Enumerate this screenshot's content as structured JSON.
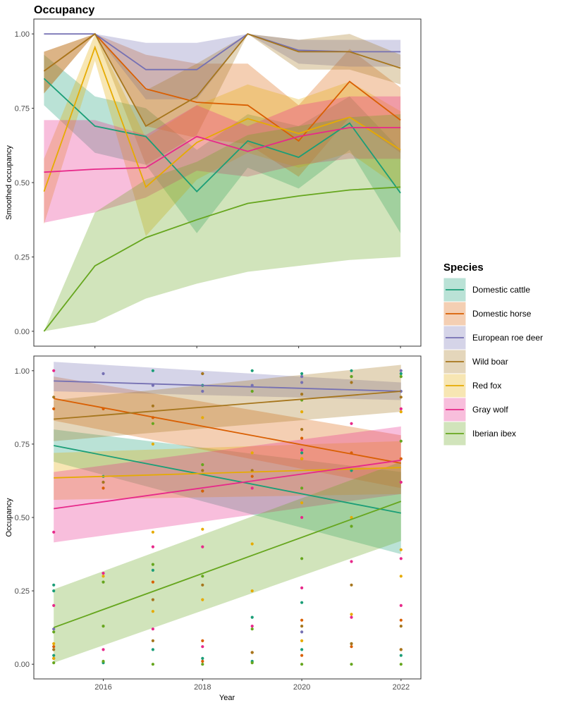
{
  "title": "Occupancy",
  "legend": {
    "title": "Species",
    "position": "right"
  },
  "species": [
    {
      "name": "Domestic cattle",
      "color": "#1b9e77"
    },
    {
      "name": "Domestic horse",
      "color": "#d95f02"
    },
    {
      "name": "European roe deer",
      "color": "#7570b3"
    },
    {
      "name": "Wild boar",
      "color": "#a6761d"
    },
    {
      "name": "Red fox",
      "color": "#e6ab02"
    },
    {
      "name": "Gray wolf",
      "color": "#e7298a"
    },
    {
      "name": "Iberian ibex",
      "color": "#66a61e"
    }
  ],
  "chart_data": [
    {
      "type": "line",
      "panel": "top",
      "title": "Occupancy",
      "xlabel": "",
      "ylabel": "Smoothed occupancy",
      "xlim": [
        2014.8,
        2022.4
      ],
      "ylim": [
        -0.05,
        1.05
      ],
      "yticks": [
        "0.00",
        "0.25",
        "0.50",
        "0.75",
        "1.00"
      ],
      "ytick_values": [
        0,
        0.25,
        0.5,
        0.75,
        1
      ],
      "grid": false,
      "x": [
        2015,
        2016,
        2017,
        2018,
        2019,
        2020,
        2021,
        2022
      ],
      "series": [
        {
          "name": "Domestic cattle",
          "values": [
            0.85,
            0.69,
            0.655,
            0.47,
            0.64,
            0.585,
            0.7,
            0.465
          ],
          "lower": [
            0.76,
            0.6,
            0.56,
            0.33,
            0.55,
            0.48,
            0.61,
            0.33
          ],
          "upper": [
            0.93,
            0.79,
            0.75,
            0.61,
            0.73,
            0.69,
            0.79,
            0.61
          ]
        },
        {
          "name": "Domestic horse",
          "values": [
            0.875,
            1.0,
            0.815,
            0.77,
            0.76,
            0.64,
            0.84,
            0.71
          ],
          "lower": [
            0.8,
            1.0,
            0.69,
            0.65,
            0.63,
            0.52,
            0.72,
            0.6
          ],
          "upper": [
            0.94,
            1.0,
            0.93,
            0.9,
            0.9,
            0.76,
            0.95,
            0.82
          ]
        },
        {
          "name": "European roe deer",
          "values": [
            1.0,
            1.0,
            0.88,
            0.88,
            1.0,
            0.945,
            0.94,
            0.94
          ],
          "lower": [
            1.0,
            1.0,
            0.78,
            0.78,
            1.0,
            0.9,
            0.89,
            0.89
          ],
          "upper": [
            1.0,
            1.0,
            0.97,
            0.97,
            1.0,
            0.98,
            0.98,
            0.98
          ]
        },
        {
          "name": "Wild boar",
          "values": [
            0.875,
            1.0,
            0.69,
            0.79,
            1.0,
            0.94,
            0.94,
            0.885
          ],
          "lower": [
            0.8,
            1.0,
            0.56,
            0.66,
            1.0,
            0.88,
            0.88,
            0.83
          ],
          "upper": [
            0.94,
            1.0,
            0.81,
            0.9,
            1.0,
            0.98,
            1.0,
            0.93
          ]
        },
        {
          "name": "Red fox",
          "values": [
            0.47,
            0.955,
            0.485,
            0.635,
            0.715,
            0.665,
            0.72,
            0.61
          ],
          "lower": [
            0.36,
            0.91,
            0.32,
            0.51,
            0.6,
            0.55,
            0.6,
            0.48
          ],
          "upper": [
            0.58,
            1.0,
            0.65,
            0.76,
            0.83,
            0.78,
            0.84,
            0.74
          ]
        },
        {
          "name": "Gray wolf",
          "values": [
            0.535,
            0.545,
            0.55,
            0.655,
            0.605,
            0.655,
            0.685,
            0.685
          ],
          "lower": [
            0.365,
            0.4,
            0.45,
            0.54,
            0.52,
            0.56,
            0.58,
            0.58
          ],
          "upper": [
            0.71,
            0.71,
            0.66,
            0.76,
            0.69,
            0.76,
            0.79,
            0.79
          ]
        },
        {
          "name": "Iberian ibex",
          "values": [
            0.0,
            0.22,
            0.315,
            0.375,
            0.43,
            0.455,
            0.475,
            0.485
          ],
          "lower": [
            0.0,
            0.03,
            0.11,
            0.16,
            0.2,
            0.22,
            0.24,
            0.25
          ],
          "upper": [
            0.0,
            0.4,
            0.51,
            0.57,
            0.66,
            0.69,
            0.72,
            0.73
          ]
        }
      ]
    },
    {
      "type": "scatter",
      "panel": "bottom",
      "title": "",
      "xlabel": "Year",
      "ylabel": "Occupancy",
      "xlim": [
        2014.6,
        2022.4
      ],
      "ylim": [
        -0.05,
        1.05
      ],
      "xticks": [
        "2016",
        "2018",
        "2020",
        "2022"
      ],
      "xtick_values": [
        2016,
        2018,
        2020,
        2022
      ],
      "yticks": [
        "0.00",
        "0.25",
        "0.50",
        "0.75",
        "1.00"
      ],
      "ytick_values": [
        0,
        0.25,
        0.5,
        0.75,
        1
      ],
      "grid": false,
      "trend_x": [
        2015,
        2022
      ],
      "trends": [
        {
          "name": "Domestic cattle",
          "values": [
            0.745,
            0.515
          ],
          "lower": [
            0.69,
            0.375
          ],
          "upper": [
            0.8,
            0.655
          ]
        },
        {
          "name": "Domestic horse",
          "values": [
            0.905,
            0.685
          ],
          "lower": [
            0.83,
            0.6
          ],
          "upper": [
            0.98,
            0.78
          ]
        },
        {
          "name": "European roe deer",
          "values": [
            0.965,
            0.93
          ],
          "lower": [
            0.93,
            0.9
          ],
          "upper": [
            1.03,
            0.96
          ]
        },
        {
          "name": "Wild boar",
          "values": [
            0.835,
            0.93
          ],
          "lower": [
            0.76,
            0.86
          ],
          "upper": [
            0.9,
            1.02
          ]
        },
        {
          "name": "Red fox",
          "values": [
            0.635,
            0.67
          ],
          "lower": [
            0.56,
            0.58
          ],
          "upper": [
            0.72,
            0.76
          ]
        },
        {
          "name": "Gray wolf",
          "values": [
            0.53,
            0.695
          ],
          "lower": [
            0.415,
            0.58
          ],
          "upper": [
            0.655,
            0.81
          ]
        },
        {
          "name": "Iberian ibex",
          "values": [
            0.125,
            0.555
          ],
          "lower": [
            0.005,
            0.42
          ],
          "upper": [
            0.255,
            0.69
          ]
        }
      ],
      "points": {
        "Domestic cattle": [
          [
            2015,
            0.27
          ],
          [
            2015,
            0.25
          ],
          [
            2015,
            0.03
          ],
          [
            2016,
            0.005
          ],
          [
            2016,
            0.64
          ],
          [
            2017,
            0.32
          ],
          [
            2017,
            0.05
          ],
          [
            2017,
            1.0
          ],
          [
            2018,
            0.02
          ],
          [
            2018,
            0.95
          ],
          [
            2018,
            0.59
          ],
          [
            2019,
            0.16
          ],
          [
            2019,
            0.01
          ],
          [
            2019,
            1.0
          ],
          [
            2020,
            0.05
          ],
          [
            2020,
            0.21
          ],
          [
            2020,
            0.99
          ],
          [
            2020,
            0.72
          ],
          [
            2021,
            0.66
          ],
          [
            2021,
            0.07
          ],
          [
            2021,
            1.0
          ],
          [
            2022,
            0.03
          ],
          [
            2022,
            0.99
          ]
        ],
        "Domestic horse": [
          [
            2015,
            0.06
          ],
          [
            2015,
            0.02
          ],
          [
            2015,
            0.87
          ],
          [
            2016,
            0.87
          ],
          [
            2016,
            0.6
          ],
          [
            2017,
            0.28
          ],
          [
            2017,
            0.84
          ],
          [
            2018,
            0.08
          ],
          [
            2018,
            0.01
          ],
          [
            2018,
            0.59
          ],
          [
            2019,
            0.04
          ],
          [
            2019,
            0.64
          ],
          [
            2020,
            0.15
          ],
          [
            2020,
            0.03
          ],
          [
            2020,
            0.77
          ],
          [
            2020,
            0.7
          ],
          [
            2021,
            0.72
          ],
          [
            2021,
            0.06
          ],
          [
            2022,
            0.15
          ],
          [
            2022,
            0.05
          ],
          [
            2022,
            0.7
          ]
        ],
        "European roe deer": [
          [
            2015,
            0.12
          ],
          [
            2016,
            0.99
          ],
          [
            2016,
            0.62
          ],
          [
            2017,
            0.95
          ],
          [
            2018,
            0.99
          ],
          [
            2018,
            0.93
          ],
          [
            2019,
            0.95
          ],
          [
            2020,
            0.98
          ],
          [
            2020,
            0.96
          ],
          [
            2020,
            0.11
          ],
          [
            2021,
            0.98
          ],
          [
            2022,
            1.0
          ],
          [
            2022,
            0.93
          ]
        ],
        "Wild boar": [
          [
            2015,
            0.05
          ],
          [
            2015,
            0.91
          ],
          [
            2016,
            0.62
          ],
          [
            2017,
            0.88
          ],
          [
            2017,
            0.22
          ],
          [
            2017,
            0.08
          ],
          [
            2018,
            0.27
          ],
          [
            2018,
            0.99
          ],
          [
            2018,
            0.66
          ],
          [
            2019,
            0.04
          ],
          [
            2019,
            0.66
          ],
          [
            2020,
            0.13
          ],
          [
            2020,
            0.92
          ],
          [
            2020,
            0.8
          ],
          [
            2021,
            0.27
          ],
          [
            2021,
            0.07
          ],
          [
            2021,
            0.96
          ],
          [
            2022,
            0.13
          ],
          [
            2022,
            0.05
          ],
          [
            2022,
            0.91
          ]
        ],
        "Red fox": [
          [
            2015,
            0.02
          ],
          [
            2015,
            0.07
          ],
          [
            2016,
            0.3
          ],
          [
            2017,
            0.18
          ],
          [
            2017,
            0.75
          ],
          [
            2017,
            0.45
          ],
          [
            2018,
            0.22
          ],
          [
            2018,
            0.84
          ],
          [
            2018,
            0.46
          ],
          [
            2019,
            0.25
          ],
          [
            2019,
            0.41
          ],
          [
            2019,
            0.72
          ],
          [
            2020,
            0.08
          ],
          [
            2020,
            0.7
          ],
          [
            2020,
            0.86
          ],
          [
            2020,
            0.55
          ],
          [
            2021,
            0.17
          ],
          [
            2021,
            0.5
          ],
          [
            2022,
            0.3
          ],
          [
            2022,
            0.39
          ],
          [
            2022,
            0.86
          ]
        ],
        "Gray wolf": [
          [
            2015,
            0.45
          ],
          [
            2015,
            1.0
          ],
          [
            2015,
            0.2
          ],
          [
            2016,
            0.05
          ],
          [
            2016,
            0.31
          ],
          [
            2017,
            0.4
          ],
          [
            2017,
            0.12
          ],
          [
            2018,
            0.4
          ],
          [
            2018,
            0.06
          ],
          [
            2019,
            0.13
          ],
          [
            2019,
            0.6
          ],
          [
            2020,
            0.26
          ],
          [
            2020,
            0.5
          ],
          [
            2020,
            0.73
          ],
          [
            2021,
            0.35
          ],
          [
            2021,
            0.16
          ],
          [
            2021,
            0.82
          ],
          [
            2022,
            0.36
          ],
          [
            2022,
            0.62
          ],
          [
            2022,
            0.2
          ],
          [
            2022,
            0.87
          ]
        ],
        "Iberian ibex": [
          [
            2015,
            0.005
          ],
          [
            2015,
            0.11
          ],
          [
            2016,
            0.01
          ],
          [
            2016,
            0.13
          ],
          [
            2016,
            0.28
          ],
          [
            2017,
            0.0
          ],
          [
            2017,
            0.34
          ],
          [
            2017,
            0.82
          ],
          [
            2018,
            0.0
          ],
          [
            2018,
            0.3
          ],
          [
            2018,
            0.68
          ],
          [
            2019,
            0.005
          ],
          [
            2019,
            0.12
          ],
          [
            2019,
            0.93
          ],
          [
            2020,
            0.0
          ],
          [
            2020,
            0.36
          ],
          [
            2020,
            0.6
          ],
          [
            2020,
            0.9
          ],
          [
            2021,
            0.0
          ],
          [
            2021,
            0.47
          ],
          [
            2021,
            0.98
          ],
          [
            2022,
            0.0
          ],
          [
            2022,
            0.76
          ],
          [
            2022,
            0.98
          ]
        ]
      }
    }
  ]
}
